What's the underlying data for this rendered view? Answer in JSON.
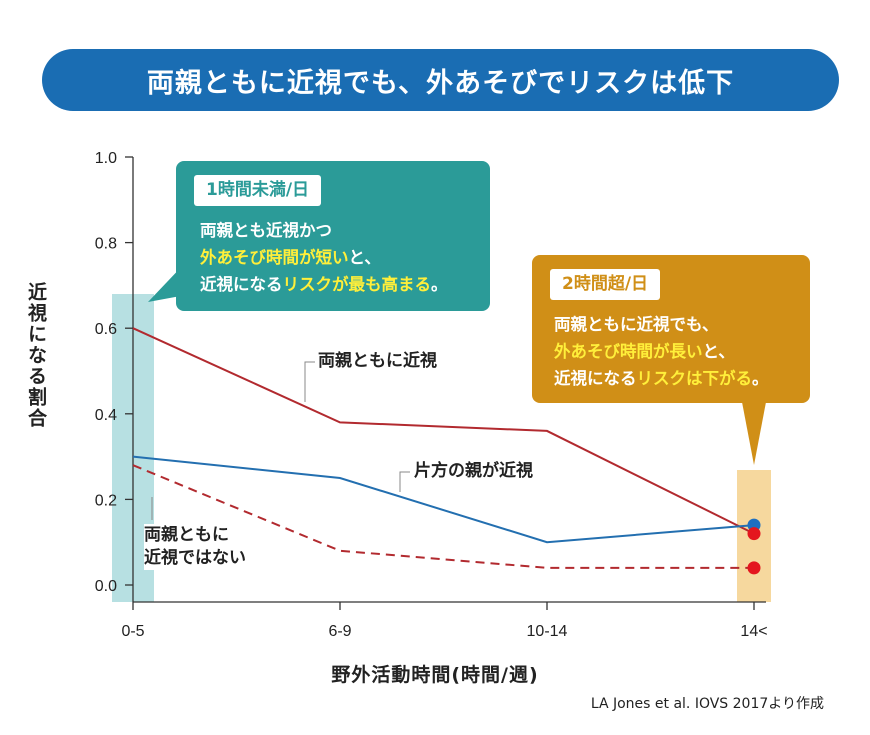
{
  "title": "両親ともに近視でも、外あそびでリスクは低下",
  "callouts": {
    "low": {
      "tag": "1時間未満/日",
      "line1": "両親とも近視かつ",
      "line2_hl": "外あそび時間が短い",
      "line2_rest": "と、",
      "line3_pre": "近視になる",
      "line3_hl": "リスクが最も高まる",
      "line3_post": "。"
    },
    "high": {
      "tag": "2時間超/日",
      "line1": "両親ともに近視でも、",
      "line2_hl": "外あそび時間が長い",
      "line2_rest": "と、",
      "line3_pre": "近視になる",
      "line3_hl": "リスクは下がる",
      "line3_post": "。"
    }
  },
  "source": "LA Jones et al. IOVS 2017より作成",
  "colors": {
    "both": "#b22a2f",
    "one": "#236fb0",
    "neither": "#b22a2f",
    "dot_red": "#e4161e",
    "dot_blue": "#1f6fc0",
    "band_low": "#b7e0e2",
    "band_high": "#f6d89e"
  },
  "chart_data": {
    "type": "line",
    "title": "両親ともに近視でも、外あそびでリスクは低下",
    "xlabel": "野外活動時間(時間/週)",
    "ylabel": "近視になる割合",
    "categories": [
      "0-5",
      "6-9",
      "10-14",
      "14<"
    ],
    "ylim": [
      0.0,
      1.0
    ],
    "yticks": [
      "0.0",
      "0.2",
      "0.4",
      "0.6",
      "0.8",
      "1.0"
    ],
    "series": [
      {
        "name": "両親ともに近視",
        "style": "solid",
        "values": [
          0.6,
          0.38,
          0.36,
          0.12
        ]
      },
      {
        "name": "片方の親が近視",
        "style": "solid",
        "values": [
          0.3,
          0.25,
          0.1,
          0.14
        ]
      },
      {
        "name": "両親ともに近視ではない",
        "label_line1": "両親ともに",
        "label_line2": "近視ではない",
        "style": "dashed",
        "values": [
          0.28,
          0.08,
          0.04,
          0.04
        ]
      }
    ],
    "highlight_dots": [
      {
        "category": "14<",
        "value": 0.14,
        "color": "blue"
      },
      {
        "category": "14<",
        "value": 0.12,
        "color": "red"
      },
      {
        "category": "14<",
        "value": 0.04,
        "color": "red"
      }
    ]
  }
}
